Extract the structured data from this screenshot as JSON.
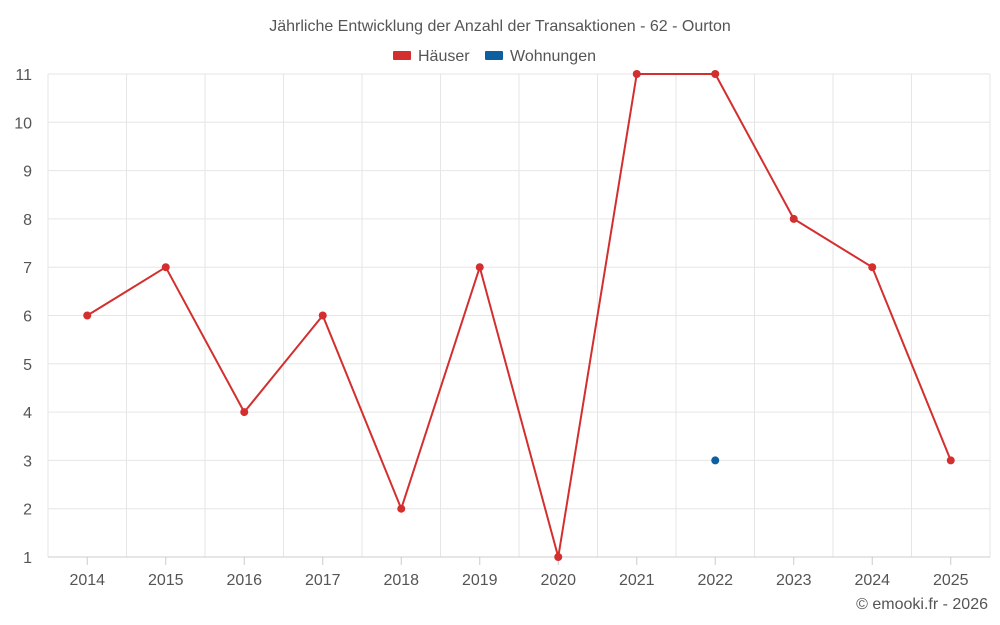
{
  "chart_data": {
    "type": "line",
    "title": "Jährliche Entwicklung der Anzahl der Transaktionen - 62 - Ourton",
    "categories": [
      "2014",
      "2015",
      "2016",
      "2017",
      "2018",
      "2019",
      "2020",
      "2021",
      "2022",
      "2023",
      "2024",
      "2025"
    ],
    "series": [
      {
        "name": "Häuser",
        "color": "#d32f2f",
        "values": [
          6,
          7,
          4,
          6,
          2,
          7,
          1,
          11,
          11,
          8,
          7,
          3
        ]
      },
      {
        "name": "Wohnungen",
        "color": "#0d5fa0",
        "values": [
          null,
          null,
          null,
          null,
          null,
          null,
          null,
          null,
          3,
          null,
          null,
          null
        ]
      }
    ],
    "xlabel": "",
    "ylabel": "",
    "ylim": [
      1,
      11
    ],
    "yticks": [
      "1",
      "2",
      "3",
      "4",
      "5",
      "6",
      "7",
      "8",
      "9",
      "10",
      "11"
    ],
    "grid": true,
    "legend": "top-center"
  },
  "credit": "© emooki.fr - 2026"
}
